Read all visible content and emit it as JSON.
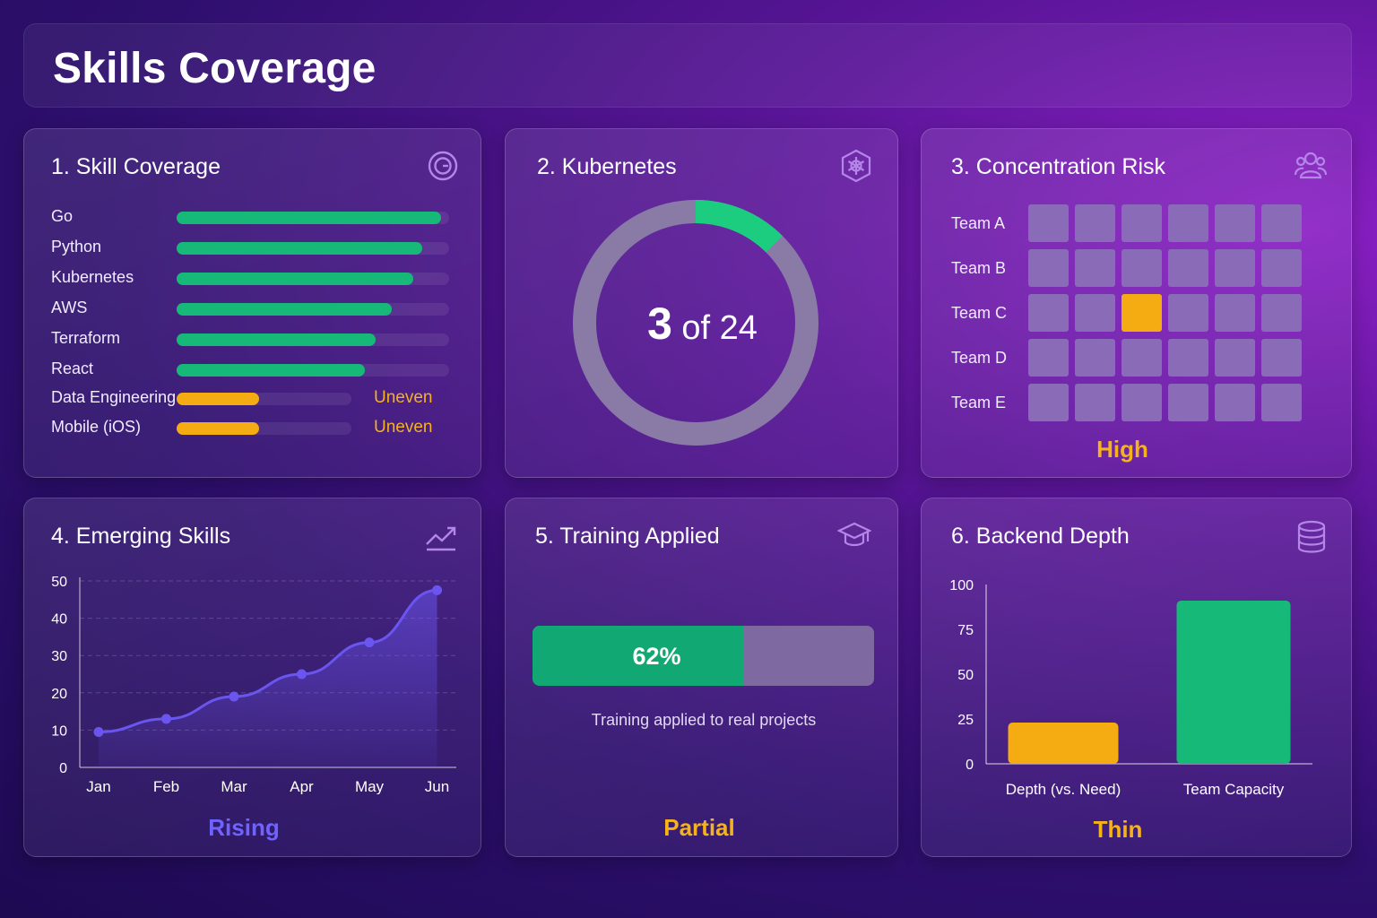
{
  "header": {
    "title": "Skills Coverage"
  },
  "colors": {
    "green": "#16b978",
    "amber": "#f5ab12",
    "purple_line": "#6a55f0",
    "cell": "#8a6bb8",
    "status_amber": "#f5b21a",
    "status_purple": "#6f63ff"
  },
  "cards": {
    "skill_coverage": {
      "title": "1. Skill Coverage",
      "icon": "target-icon",
      "skills": [
        {
          "name": "Go",
          "value": 97,
          "color": "green",
          "note": ""
        },
        {
          "name": "Python",
          "value": 90,
          "color": "green",
          "note": ""
        },
        {
          "name": "Kubernetes",
          "value": 87,
          "color": "green",
          "note": ""
        },
        {
          "name": "AWS",
          "value": 79,
          "color": "green",
          "note": ""
        },
        {
          "name": "Terraform",
          "value": 73,
          "color": "green",
          "note": ""
        },
        {
          "name": "React",
          "value": 69,
          "color": "green",
          "note": ""
        },
        {
          "name": "Data Engineering",
          "value": 47,
          "color": "amber",
          "note": "Uneven"
        },
        {
          "name": "Mobile (iOS)",
          "value": 47,
          "color": "amber",
          "note": "Uneven"
        }
      ]
    },
    "kubernetes": {
      "title": "2. Kubernetes",
      "icon": "kubernetes-icon",
      "count": "3",
      "total_label": "of 24",
      "fraction": 0.125
    },
    "concentration_risk": {
      "title": "3. Concentration Risk",
      "icon": "users-icon",
      "teams": [
        "Team A",
        "Team B",
        "Team C",
        "Team D",
        "Team E"
      ],
      "columns": 6,
      "highlight": {
        "team": 2,
        "column": 2
      },
      "status": "High"
    },
    "emerging_skills": {
      "title": "4. Emerging Skills",
      "icon": "trend-up-icon",
      "status": "Rising"
    },
    "training_applied": {
      "title": "5. Training Applied",
      "icon": "graduation-cap-icon",
      "percent": 62,
      "percent_label": "62%",
      "caption": "Training applied to real projects",
      "status": "Partial"
    },
    "backend_depth": {
      "title": "6. Backend Depth",
      "icon": "database-icon",
      "status": "Thin"
    }
  },
  "chart_data": [
    {
      "type": "line",
      "x": [
        "Jan",
        "Feb",
        "Mar",
        "Apr",
        "May",
        "Jun"
      ],
      "series": [
        {
          "values": [
            9.5,
            13,
            19,
            25,
            33.5,
            47.5
          ]
        }
      ],
      "ylim": [
        0,
        50
      ],
      "yticks": [
        0,
        10,
        20,
        30,
        40,
        50
      ],
      "grid": true
    },
    {
      "type": "bar",
      "categories": [
        "Depth (vs. Need)",
        "Team Capacity"
      ],
      "values": [
        23,
        91
      ],
      "colors": [
        "#f5ab12",
        "#16b978"
      ],
      "ylim": [
        0,
        100
      ],
      "yticks": [
        0,
        25,
        50,
        75,
        100
      ]
    }
  ]
}
